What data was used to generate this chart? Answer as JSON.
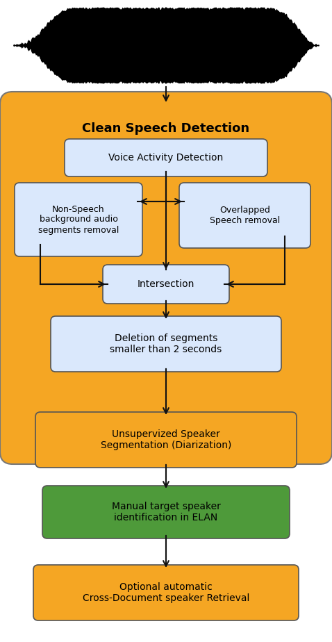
{
  "background_color": "#ffffff",
  "waveform_color": "#000000",
  "yellow_bg": "#F5A623",
  "yellow_box": "#F5A623",
  "blue_box": "#DAE8FC",
  "green_box": "#4E9A3A",
  "box_edge_color": "#555555",
  "arrow_color": "#111111",
  "title_clean_speech": "Clean Speech Detection",
  "box1_text": "Voice Activity Detection",
  "box2_text": "Non-Speech\nbackground audio\nsegments removal",
  "box3_text": "Overlapped\nSpeech removal",
  "box4_text": "Intersection",
  "box5_text": "Deletion of segments\nsmaller than 2 seconds",
  "box6_text": "Unsupervized Speaker\nSegmentation (Diarization)",
  "box7_text": "Manual target speaker\nidentification in ELAN",
  "box8_text": "Optional automatic\nCross-Document speaker Retrieval",
  "fig_width": 4.78,
  "fig_height": 9.24
}
